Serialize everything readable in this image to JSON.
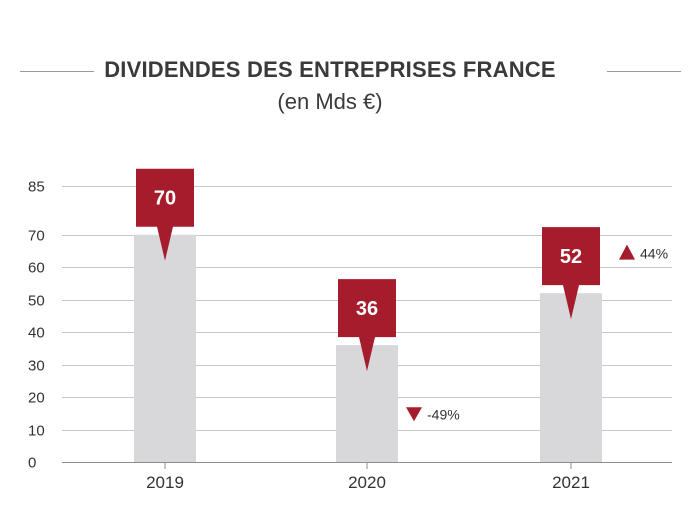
{
  "chart_data": {
    "type": "bar",
    "title": "DIVIDENDES DES ENTREPRISES FRANCE",
    "subtitle": "(en Mds €)",
    "categories": [
      "2019",
      "2020",
      "2021"
    ],
    "values": [
      70,
      36,
      52
    ],
    "value_labels": [
      "70",
      "36",
      "52"
    ],
    "changes": [
      {
        "category": "2020",
        "label": "-49%",
        "direction": "down"
      },
      {
        "category": "2021",
        "label": "44%",
        "direction": "up"
      }
    ],
    "yticks": [
      0,
      10,
      20,
      30,
      40,
      50,
      60,
      70,
      85
    ],
    "ylim": [
      0,
      85
    ],
    "grid": true,
    "xlabel": "",
    "ylabel": "",
    "colors": {
      "bar": "#d8d8da",
      "label_box": "#a51d2d",
      "grid": "#c8c8c8",
      "text": "#333333"
    }
  }
}
